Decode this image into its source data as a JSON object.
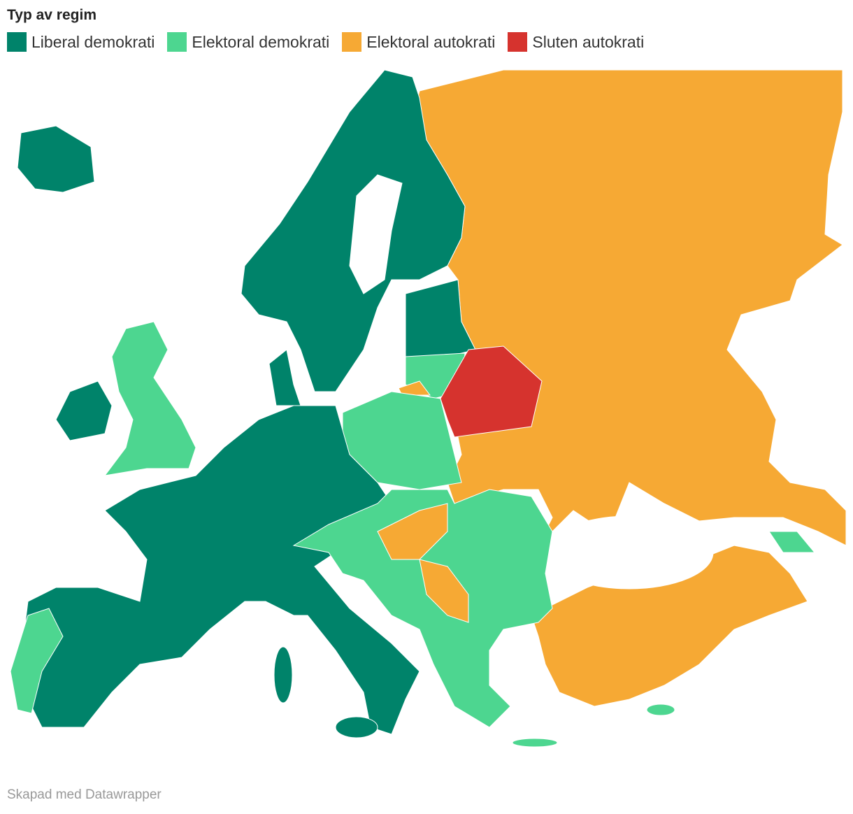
{
  "legend": {
    "title": "Typ av regim",
    "items": [
      {
        "label": "Liberal demokrati",
        "color": "#00836a"
      },
      {
        "label": "Elektoral demokrati",
        "color": "#4dd690"
      },
      {
        "label": "Elektoral autokrati",
        "color": "#f6a934"
      },
      {
        "label": "Sluten autokrati",
        "color": "#d6332e"
      }
    ]
  },
  "footer": "Skapad med Datawrapper"
}
